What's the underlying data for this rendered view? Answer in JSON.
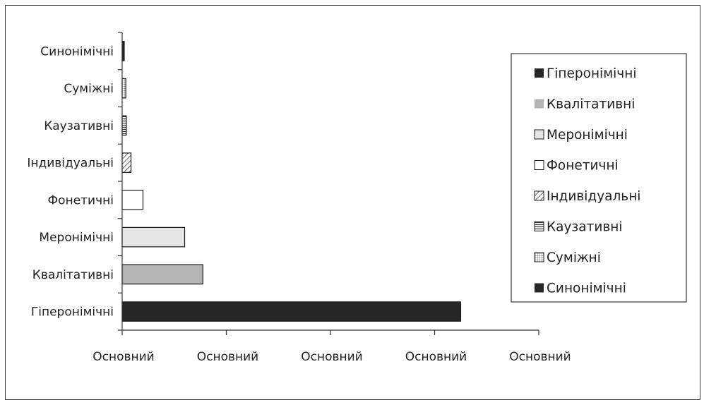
{
  "chart_data": {
    "type": "bar",
    "orientation": "horizontal",
    "categories": [
      "Гіперонімічні",
      "Квалітативні",
      "Меронімічні",
      "Фонетичні",
      "Індивідуальні",
      "Каузативні",
      "Суміжні",
      "Синонімічні"
    ],
    "values": [
      65,
      15.5,
      12,
      4,
      1.7,
      0.8,
      0.7,
      0.4
    ],
    "xlim": [
      0,
      80
    ],
    "x_tick_labels": [
      "Основний",
      "Основний",
      "Основний",
      "Основний",
      "Основний"
    ],
    "grid": false,
    "legend_position": "right",
    "legend": [
      "Гіперонімічні",
      "Квалітативні",
      "Меронімічні",
      "Фонетичні",
      "Індивідуальні",
      "Каузативні",
      "Суміжні",
      "Синонімічні"
    ],
    "bar_styles": [
      {
        "fill": "#262626",
        "pattern": "solid"
      },
      {
        "fill": "#b4b4b4",
        "pattern": "solid"
      },
      {
        "fill": "#e6e6e6",
        "pattern": "solid"
      },
      {
        "fill": "#ffffff",
        "pattern": "solid"
      },
      {
        "fill": "#ffffff",
        "pattern": "diagonal"
      },
      {
        "fill": "#ffffff",
        "pattern": "horizontal"
      },
      {
        "fill": "#ffffff",
        "pattern": "grid"
      },
      {
        "fill": "#262626",
        "pattern": "solid"
      }
    ]
  }
}
